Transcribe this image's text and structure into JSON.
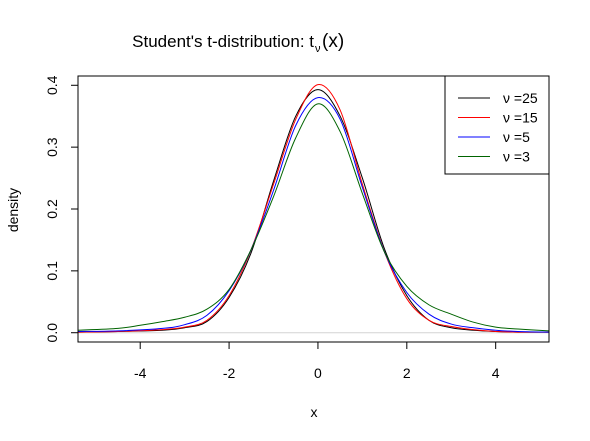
{
  "chart_data": {
    "type": "line",
    "title_main": "Student's t-distribution: t",
    "title_sub": "ν",
    "title_arg": "(x)",
    "xlabel": "x",
    "ylabel": "density",
    "xlim": [
      -5.4,
      5.2
    ],
    "ylim": [
      -0.015,
      0.415
    ],
    "x_ticks": [
      -4,
      -2,
      0,
      2,
      4
    ],
    "x_tick_labels": [
      "-4",
      "-2",
      "0",
      "2",
      "4"
    ],
    "y_ticks": [
      0.0,
      0.1,
      0.2,
      0.3,
      0.4
    ],
    "y_tick_labels": [
      "0.0",
      "0.1",
      "0.2",
      "0.3",
      "0.4"
    ],
    "zero_line": true,
    "grid": false,
    "legend_position": "top-right",
    "series": [
      {
        "name": "ν =25",
        "color": "#000000",
        "x": [
          -5.4,
          -4.5,
          -3.5,
          -3,
          -2.5,
          -2,
          -1.5,
          -1,
          -0.5,
          0,
          0.5,
          1,
          1.5,
          2,
          2.5,
          3,
          3.5,
          4,
          4.5,
          5.2
        ],
        "y": [
          0.001,
          0.002,
          0.004,
          0.008,
          0.018,
          0.057,
          0.13,
          0.245,
          0.35,
          0.393,
          0.35,
          0.25,
          0.135,
          0.06,
          0.02,
          0.008,
          0.004,
          0.002,
          0.001,
          0.001
        ]
      },
      {
        "name": "ν =15",
        "color": "#ff0000",
        "x": [
          -5.4,
          -4.5,
          -3.5,
          -3,
          -2.5,
          -2,
          -1.5,
          -1,
          -0.5,
          0,
          0.5,
          1,
          1.5,
          2,
          2.5,
          3,
          3.5,
          4,
          4.5,
          5.2
        ],
        "y": [
          0.001,
          0.002,
          0.005,
          0.009,
          0.02,
          0.06,
          0.135,
          0.24,
          0.345,
          0.401,
          0.36,
          0.24,
          0.13,
          0.055,
          0.02,
          0.01,
          0.005,
          0.002,
          0.001,
          0.001
        ]
      },
      {
        "name": "ν =5",
        "color": "#0000ff",
        "x": [
          -5.4,
          -4.5,
          -3.5,
          -3,
          -2.5,
          -2,
          -1.5,
          -1,
          -0.5,
          0,
          0.5,
          1,
          1.5,
          2,
          2.5,
          3,
          3.5,
          4,
          4.5,
          5.2
        ],
        "y": [
          0.002,
          0.003,
          0.007,
          0.013,
          0.028,
          0.068,
          0.135,
          0.23,
          0.335,
          0.38,
          0.345,
          0.235,
          0.13,
          0.065,
          0.03,
          0.014,
          0.008,
          0.004,
          0.002,
          0.001
        ]
      },
      {
        "name": "ν =3",
        "color": "#006400",
        "x": [
          -5.4,
          -4.5,
          -4,
          -3.5,
          -3,
          -2.5,
          -2,
          -1.5,
          -1,
          -0.5,
          0,
          0.5,
          1,
          1.5,
          2,
          2.5,
          3,
          3.5,
          4,
          4.5,
          5.2
        ],
        "y": [
          0.004,
          0.007,
          0.012,
          0.018,
          0.025,
          0.038,
          0.07,
          0.135,
          0.22,
          0.315,
          0.37,
          0.325,
          0.225,
          0.13,
          0.075,
          0.045,
          0.03,
          0.017,
          0.009,
          0.006,
          0.003
        ]
      }
    ]
  }
}
